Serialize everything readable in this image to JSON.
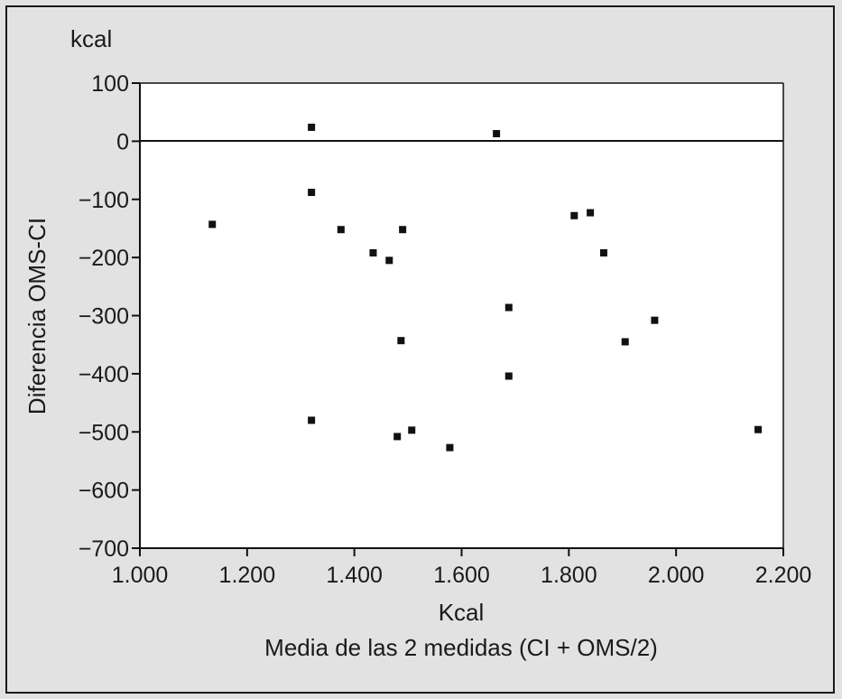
{
  "chart_data": {
    "type": "scatter",
    "title": "",
    "unit_label": "kcal",
    "ylabel": "Diferencia OMS-CI",
    "xlabel_line1": "Kcal",
    "xlabel_line2": "Media de las 2 medidas (CI + OMS/2)",
    "xlim": [
      1000,
      2200
    ],
    "ylim": [
      -700,
      100
    ],
    "x_ticks": [
      1000,
      1200,
      1400,
      1600,
      1800,
      2000,
      2200
    ],
    "x_tick_labels": [
      "1.000",
      "1.200",
      "1.400",
      "1.600",
      "1.800",
      "2.000",
      "2.200"
    ],
    "y_ticks": [
      100,
      0,
      -100,
      -200,
      -300,
      -400,
      -500,
      -600,
      -700
    ],
    "y_tick_labels": [
      "100",
      "0",
      "−100",
      "−200",
      "−300",
      "−400",
      "−500",
      "−600",
      "−700"
    ],
    "reference_line_y": 0,
    "grid": false,
    "colors": {
      "points": "#111111",
      "axes": "#111111",
      "plot_bg": "#ffffff",
      "frame_bg": "#e2e2e2"
    },
    "points": [
      {
        "x": 1135,
        "y": -143
      },
      {
        "x": 1320,
        "y": 24
      },
      {
        "x": 1320,
        "y": -88
      },
      {
        "x": 1320,
        "y": -480
      },
      {
        "x": 1375,
        "y": -152
      },
      {
        "x": 1435,
        "y": -192
      },
      {
        "x": 1465,
        "y": -205
      },
      {
        "x": 1480,
        "y": -508
      },
      {
        "x": 1487,
        "y": -343
      },
      {
        "x": 1490,
        "y": -152
      },
      {
        "x": 1507,
        "y": -497
      },
      {
        "x": 1578,
        "y": -527
      },
      {
        "x": 1665,
        "y": 13
      },
      {
        "x": 1688,
        "y": -286
      },
      {
        "x": 1688,
        "y": -404
      },
      {
        "x": 1810,
        "y": -128
      },
      {
        "x": 1840,
        "y": -123
      },
      {
        "x": 1865,
        "y": -192
      },
      {
        "x": 1905,
        "y": -345
      },
      {
        "x": 1960,
        "y": -308
      },
      {
        "x": 2153,
        "y": -496
      }
    ]
  }
}
